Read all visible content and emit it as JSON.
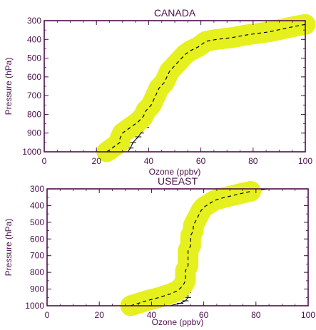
{
  "colors": {
    "axis": "#4b0f4b",
    "text": "#4b0f4b",
    "band": "#e6f01e",
    "line": "#000000"
  },
  "chart_data": [
    {
      "type": "line",
      "title": "CANADA",
      "xlabel": "Ozone (ppbv)",
      "ylabel": "Pressure (hPa)",
      "xlim": [
        0,
        100
      ],
      "ylim": [
        1000,
        300
      ],
      "y_reversed": true,
      "xticks": [
        "0",
        "20",
        "40",
        "60",
        "80",
        "100"
      ],
      "yticks": [
        "300",
        "400",
        "500",
        "600",
        "700",
        "800",
        "900",
        "1000"
      ],
      "series": [
        {
          "style": "solid-with-error-bars",
          "x": [
            32,
            33,
            34,
            36,
            37,
            39,
            40,
            41,
            42,
            43,
            44,
            45,
            46,
            47,
            48,
            50,
            52,
            54,
            56,
            59,
            62,
            66,
            72,
            80,
            88,
            94,
            100
          ],
          "y": [
            1000,
            980,
            950,
            920,
            900,
            870,
            840,
            810,
            780,
            750,
            720,
            690,
            660,
            630,
            600,
            570,
            540,
            510,
            480,
            450,
            420,
            400,
            380,
            360,
            340,
            320,
            300
          ],
          "err": [
            1.2,
            1.2,
            1.2,
            1.2,
            1.2,
            1.2,
            1.2,
            1.2,
            1.2,
            1.2,
            1.2,
            1.2,
            1.2,
            1.2,
            1.2,
            1.2,
            1.2,
            1.2,
            1.2,
            1.2,
            1.2,
            1.2,
            1.2,
            1.2,
            1.2,
            1.2,
            1.2
          ]
        },
        {
          "style": "dashed-with-band",
          "x": [
            24,
            27,
            29,
            29,
            30,
            33,
            36,
            38,
            39,
            41,
            42,
            43,
            44,
            46,
            47,
            48,
            50,
            52,
            54,
            56,
            59,
            62,
            66,
            72,
            78,
            86,
            96,
            100
          ],
          "y": [
            1000,
            970,
            950,
            930,
            900,
            870,
            840,
            810,
            780,
            750,
            720,
            690,
            660,
            630,
            600,
            570,
            540,
            510,
            480,
            460,
            440,
            410,
            400,
            390,
            375,
            360,
            330,
            320
          ],
          "band": [
            1.8,
            1.8,
            1.8,
            1.8,
            1.8,
            1.8,
            1.8,
            1.8,
            1.8,
            1.8,
            1.8,
            1.8,
            1.8,
            1.8,
            1.8,
            1.8,
            1.8,
            1.8,
            1.8,
            1.8,
            1.8,
            1.8,
            1.8,
            1.8,
            1.8,
            1.8,
            1.8,
            1.8
          ]
        }
      ]
    },
    {
      "type": "line",
      "title": "USEAST",
      "xlabel": "Ozone (ppbv)",
      "ylabel": "Pressure (hPa)",
      "xlim": [
        0,
        100
      ],
      "ylim": [
        1000,
        300
      ],
      "y_reversed": true,
      "xticks": [
        "0",
        "20",
        "40",
        "60",
        "80",
        "100"
      ],
      "yticks": [
        "300",
        "400",
        "500",
        "600",
        "700",
        "800",
        "900",
        "1000"
      ],
      "series": [
        {
          "style": "solid-with-error-bars",
          "x": [
            47,
            51,
            53,
            54,
            54,
            54,
            54,
            54,
            55,
            55,
            55,
            55,
            55,
            56,
            56,
            56,
            57,
            57,
            58,
            59,
            60,
            62,
            64,
            67,
            71,
            75,
            80,
            85
          ],
          "y": [
            1000,
            985,
            970,
            950,
            920,
            890,
            860,
            830,
            800,
            770,
            740,
            710,
            680,
            650,
            620,
            590,
            560,
            530,
            500,
            470,
            440,
            410,
            390,
            370,
            350,
            330,
            310,
            300
          ],
          "err": [
            1.2,
            1.2,
            1.2,
            1.2,
            1.2,
            1.2,
            1.2,
            1.2,
            1.2,
            1.2,
            1.2,
            1.2,
            1.2,
            1.2,
            1.2,
            1.2,
            1.2,
            1.2,
            1.2,
            1.2,
            1.2,
            1.2,
            1.2,
            1.2,
            1.2,
            1.2,
            1.2,
            1.2
          ]
        },
        {
          "style": "dashed-with-band",
          "x": [
            32,
            38,
            43,
            47,
            50,
            52,
            53,
            53,
            53,
            54,
            54,
            54,
            54,
            55,
            55,
            55,
            56,
            56,
            57,
            58,
            59,
            60,
            62,
            64,
            67,
            71,
            75,
            78
          ],
          "y": [
            1000,
            970,
            950,
            930,
            910,
            880,
            850,
            820,
            790,
            760,
            730,
            700,
            670,
            640,
            610,
            580,
            550,
            520,
            490,
            460,
            430,
            410,
            390,
            370,
            355,
            340,
            325,
            315
          ],
          "band": [
            1.8,
            1.8,
            1.8,
            1.8,
            1.8,
            1.8,
            1.8,
            1.8,
            1.8,
            1.8,
            1.8,
            1.8,
            1.8,
            1.8,
            1.8,
            1.8,
            1.8,
            1.8,
            1.8,
            1.8,
            1.8,
            1.8,
            1.8,
            1.8,
            1.8,
            1.8,
            1.8,
            1.8
          ]
        }
      ]
    }
  ]
}
